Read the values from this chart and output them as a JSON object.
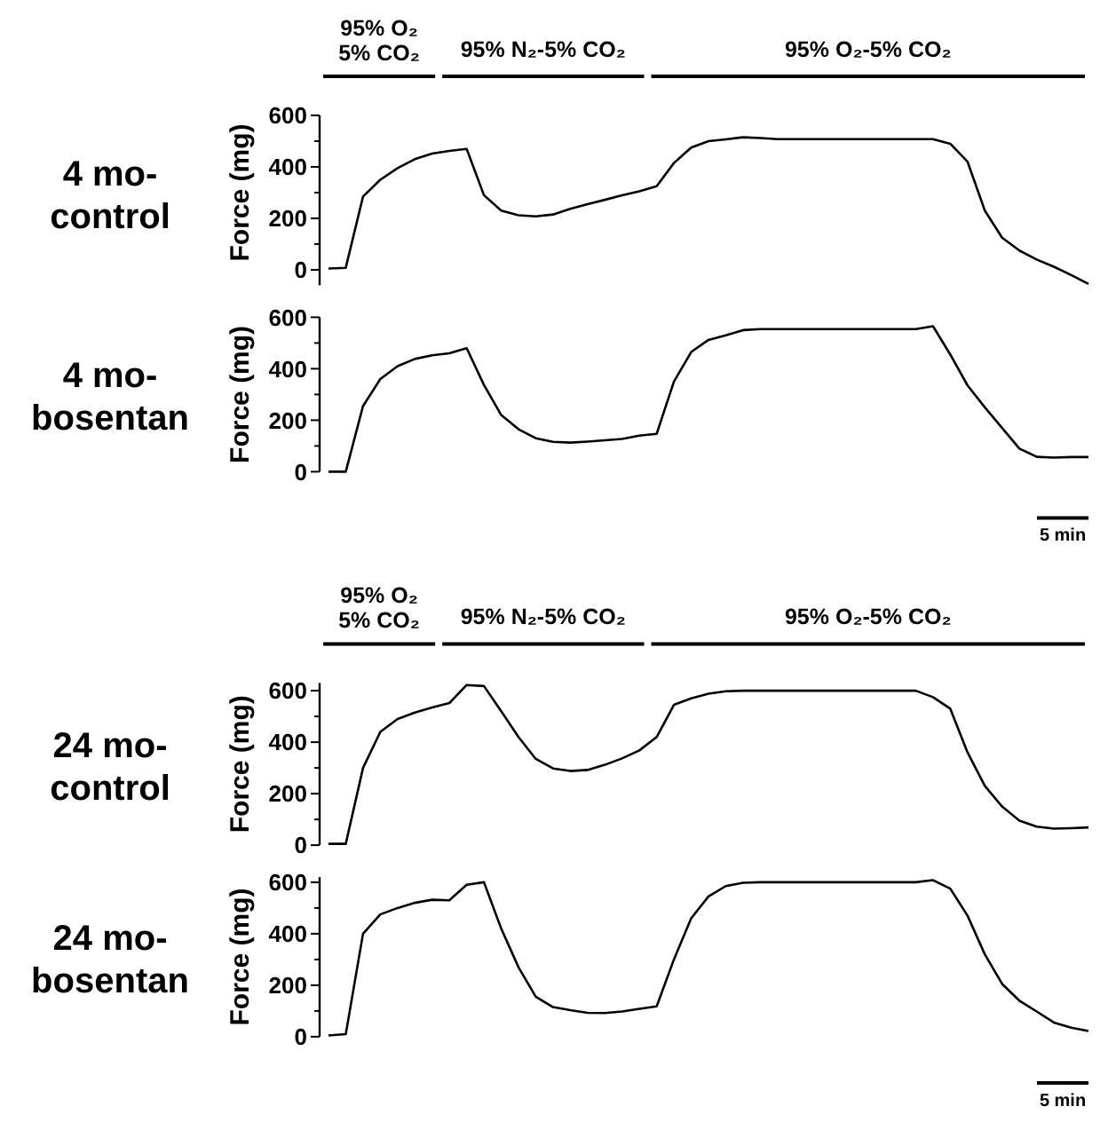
{
  "chart_data": [
    {
      "type": "line",
      "title": "4 mo-control",
      "ylabel": "Force (mg)",
      "annotations": [
        "95% O₂ 5% CO₂",
        "95% N₂-5% CO₂",
        "95% O₂-5% CO₂"
      ],
      "categories": [
        null,
        null,
        null,
        null,
        null,
        null,
        null,
        null,
        null,
        null,
        null,
        null,
        null,
        null,
        null,
        null,
        null,
        null,
        null,
        null,
        null,
        null,
        null,
        null,
        null,
        null,
        null,
        null,
        null,
        null,
        null,
        null,
        null,
        null,
        null,
        null,
        null,
        null,
        null,
        null,
        null,
        null,
        null,
        null,
        null
      ],
      "ylim": [
        -60,
        600
      ],
      "yticks": [
        0,
        {
          "value": 100,
          "label": null
        },
        200,
        {
          "value": 300,
          "label": null
        },
        400,
        {
          "value": 500,
          "label": null
        },
        600
      ],
      "tick_labels": "y",
      "grid": false,
      "marker": "none",
      "series": [
        {
          "color": "#000000",
          "values": [
            5,
            8,
            285,
            350,
            395,
            430,
            452,
            462,
            470,
            290,
            230,
            212,
            208,
            215,
            237,
            255,
            272,
            290,
            305,
            325,
            415,
            475,
            500,
            507,
            515,
            512,
            508,
            508,
            508,
            508,
            508,
            508,
            508,
            508,
            508,
            508,
            490,
            420,
            230,
            125,
            75,
            40,
            12,
            -20,
            -55
          ]
        }
      ]
    },
    {
      "type": "line",
      "title": "4 mo-bosentan",
      "ylabel": "Force (mg)",
      "annotations": [
        "5 min"
      ],
      "categories": [
        null,
        null,
        null,
        null,
        null,
        null,
        null,
        null,
        null,
        null,
        null,
        null,
        null,
        null,
        null,
        null,
        null,
        null,
        null,
        null,
        null,
        null,
        null,
        null,
        null,
        null,
        null,
        null,
        null,
        null,
        null,
        null,
        null,
        null,
        null,
        null,
        null,
        null,
        null,
        null,
        null,
        null,
        null,
        null,
        null
      ],
      "ylim": [
        0,
        600
      ],
      "yticks": [
        0,
        {
          "value": 100,
          "label": null
        },
        200,
        {
          "value": 300,
          "label": null
        },
        400,
        {
          "value": 500,
          "label": null
        },
        600
      ],
      "tick_labels": "y",
      "grid": false,
      "marker": "none",
      "series": [
        {
          "color": "#000000",
          "values": [
            0,
            0,
            255,
            360,
            410,
            438,
            452,
            460,
            480,
            337,
            220,
            165,
            130,
            116,
            113,
            117,
            122,
            127,
            140,
            147,
            350,
            465,
            512,
            530,
            550,
            554,
            554,
            554,
            554,
            554,
            554,
            554,
            554,
            554,
            554,
            565,
            455,
            335,
            250,
            170,
            90,
            58,
            55,
            57,
            57
          ]
        }
      ]
    },
    {
      "type": "line",
      "title": "24 mo-control",
      "ylabel": "Force (mg)",
      "annotations": [
        "95% O₂ 5% CO₂",
        "95% N₂-5% CO₂",
        "95% O₂-5% CO₂"
      ],
      "categories": [
        null,
        null,
        null,
        null,
        null,
        null,
        null,
        null,
        null,
        null,
        null,
        null,
        null,
        null,
        null,
        null,
        null,
        null,
        null,
        null,
        null,
        null,
        null,
        null,
        null,
        null,
        null,
        null,
        null,
        null,
        null,
        null,
        null,
        null,
        null,
        null,
        null,
        null,
        null,
        null,
        null,
        null,
        null,
        null,
        null
      ],
      "ylim": [
        0,
        630
      ],
      "yticks": [
        0,
        {
          "value": 100,
          "label": null
        },
        200,
        {
          "value": 300,
          "label": null
        },
        400,
        {
          "value": 500,
          "label": null
        },
        600
      ],
      "tick_labels": "y",
      "grid": false,
      "marker": "none",
      "series": [
        {
          "color": "#000000",
          "values": [
            5,
            5,
            300,
            440,
            490,
            515,
            535,
            552,
            622,
            618,
            520,
            420,
            335,
            298,
            288,
            292,
            312,
            337,
            368,
            420,
            545,
            570,
            588,
            598,
            600,
            600,
            600,
            600,
            600,
            600,
            600,
            600,
            600,
            600,
            600,
            575,
            530,
            360,
            230,
            150,
            95,
            72,
            64,
            66,
            69
          ]
        }
      ]
    },
    {
      "type": "line",
      "title": "24 mo-bosentan",
      "ylabel": "Force (mg)",
      "annotations": [
        "5 min"
      ],
      "categories": [
        null,
        null,
        null,
        null,
        null,
        null,
        null,
        null,
        null,
        null,
        null,
        null,
        null,
        null,
        null,
        null,
        null,
        null,
        null,
        null,
        null,
        null,
        null,
        null,
        null,
        null,
        null,
        null,
        null,
        null,
        null,
        null,
        null,
        null,
        null,
        null,
        null,
        null,
        null,
        null,
        null,
        null,
        null,
        null,
        null
      ],
      "ylim": [
        0,
        620
      ],
      "yticks": [
        0,
        {
          "value": 100,
          "label": null
        },
        200,
        {
          "value": 300,
          "label": null
        },
        400,
        {
          "value": 500,
          "label": null
        },
        600
      ],
      "tick_labels": "y",
      "grid": false,
      "marker": "none",
      "series": [
        {
          "color": "#000000",
          "values": [
            5,
            10,
            400,
            475,
            500,
            520,
            532,
            530,
            590,
            600,
            420,
            270,
            155,
            115,
            103,
            93,
            92,
            98,
            108,
            118,
            300,
            460,
            545,
            585,
            598,
            600,
            600,
            600,
            600,
            600,
            600,
            600,
            600,
            600,
            600,
            608,
            575,
            470,
            320,
            205,
            140,
            98,
            55,
            35,
            22
          ]
        }
      ]
    }
  ]
}
